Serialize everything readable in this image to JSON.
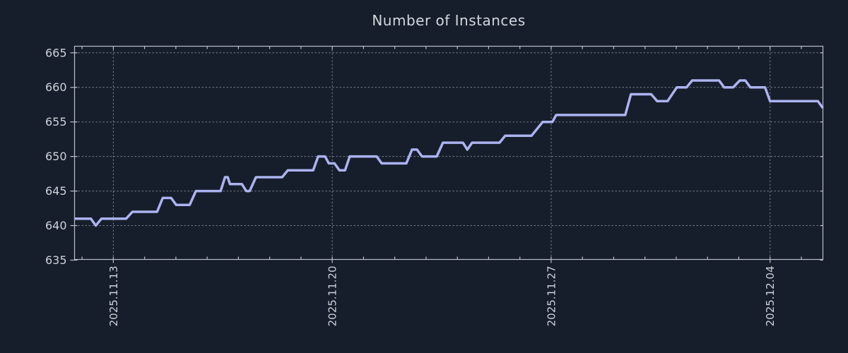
{
  "chart_data": {
    "type": "line",
    "title": "Number of Instances",
    "xlabel": "",
    "ylabel": "",
    "grid": true,
    "legend": false,
    "colors": {
      "background": "#171e2b",
      "line": "#abb3f0",
      "grid": "#949ca8",
      "border": "#b9bfc8",
      "tick_labels": "#cdd2da",
      "title": "#d2d7de"
    },
    "x_axis": {
      "tick_labels": [
        "2025.11.13",
        "2025.11.20",
        "2025.11.27",
        "2025.12.04"
      ],
      "tick_positions_days": [
        0,
        7,
        14,
        21
      ],
      "minor_tick_every_days": 1,
      "range_days": [
        -1.24,
        22.69
      ]
    },
    "y_axis": {
      "ticks": [
        635,
        640,
        645,
        650,
        655,
        660,
        665
      ],
      "range": [
        635.1,
        665.95
      ]
    },
    "series": [
      {
        "name": "Number of Instances",
        "color": "#abb3f0",
        "points": [
          [
            -1.24,
            641
          ],
          [
            -0.72,
            641
          ],
          [
            -0.56,
            640
          ],
          [
            -0.38,
            641
          ],
          [
            0.41,
            641
          ],
          [
            0.61,
            642
          ],
          [
            1.4,
            642
          ],
          [
            1.58,
            644
          ],
          [
            1.85,
            644
          ],
          [
            2.01,
            643
          ],
          [
            2.44,
            643
          ],
          [
            2.64,
            645
          ],
          [
            3.43,
            645
          ],
          [
            3.57,
            647
          ],
          [
            3.66,
            647
          ],
          [
            3.73,
            646
          ],
          [
            4.11,
            646
          ],
          [
            4.25,
            645
          ],
          [
            4.36,
            645
          ],
          [
            4.56,
            647
          ],
          [
            5.4,
            647
          ],
          [
            5.58,
            648
          ],
          [
            6.39,
            648
          ],
          [
            6.55,
            650
          ],
          [
            6.77,
            650
          ],
          [
            6.89,
            649
          ],
          [
            7.07,
            649
          ],
          [
            7.23,
            648
          ],
          [
            7.41,
            648
          ],
          [
            7.56,
            650
          ],
          [
            8.42,
            650
          ],
          [
            8.58,
            649
          ],
          [
            9.37,
            649
          ],
          [
            9.55,
            651
          ],
          [
            9.71,
            651
          ],
          [
            9.87,
            650
          ],
          [
            10.34,
            650
          ],
          [
            10.54,
            652
          ],
          [
            11.18,
            652
          ],
          [
            11.32,
            651
          ],
          [
            11.47,
            652
          ],
          [
            12.35,
            652
          ],
          [
            12.53,
            653
          ],
          [
            13.37,
            653
          ],
          [
            13.73,
            655
          ],
          [
            14.04,
            655
          ],
          [
            14.16,
            656
          ],
          [
            16.37,
            656
          ],
          [
            16.55,
            659
          ],
          [
            17.2,
            659
          ],
          [
            17.39,
            658
          ],
          [
            17.72,
            658
          ],
          [
            18.02,
            660
          ],
          [
            18.33,
            660
          ],
          [
            18.51,
            661
          ],
          [
            19.37,
            661
          ],
          [
            19.53,
            660
          ],
          [
            19.82,
            660
          ],
          [
            20.03,
            661
          ],
          [
            20.21,
            661
          ],
          [
            20.37,
            660
          ],
          [
            20.84,
            660
          ],
          [
            21.0,
            658
          ],
          [
            22.53,
            658
          ],
          [
            22.69,
            657
          ]
        ]
      }
    ]
  }
}
